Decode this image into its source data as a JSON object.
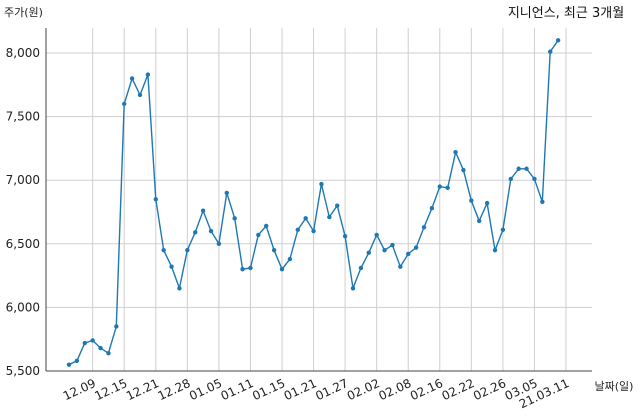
{
  "chart_data": {
    "type": "line",
    "title": "지니언스, 최근 3개월",
    "ylabel": "주가(원)",
    "xlabel": "날짜(일)",
    "ylim": [
      5500,
      8250
    ],
    "yticks": [
      5500,
      6000,
      6500,
      7000,
      7500,
      8000
    ],
    "ytick_labels": [
      "5,500",
      "6,000",
      "6,500",
      "7,000",
      "7,500",
      "8,000"
    ],
    "xtick_labels": [
      "12.09",
      "12.15",
      "12.21",
      "12.28",
      "01.05",
      "01.11",
      "01.15",
      "01.21",
      "01.27",
      "02.02",
      "02.08",
      "02.16",
      "02.22",
      "02.26",
      "03.05",
      "21.03.11"
    ],
    "xtick_positions": [
      3,
      7,
      11,
      15,
      19,
      23,
      27,
      31,
      35,
      39,
      43,
      47,
      51,
      55,
      59,
      63
    ],
    "grid": true,
    "color": "#1f77b4",
    "values": [
      5550,
      5580,
      5720,
      5740,
      5680,
      5640,
      5850,
      7600,
      7800,
      7670,
      7830,
      6850,
      6450,
      6320,
      6150,
      6450,
      6590,
      6760,
      6600,
      6500,
      6900,
      6700,
      6300,
      6310,
      6570,
      6640,
      6450,
      6300,
      6380,
      6610,
      6700,
      6600,
      6970,
      6710,
      6800,
      6560,
      6150,
      6310,
      6430,
      6570,
      6450,
      6490,
      6320,
      6420,
      6470,
      6630,
      6780,
      6950,
      6940,
      7220,
      7080,
      6840,
      6680,
      6820,
      6450,
      6610,
      7010,
      7090,
      7090,
      7010,
      6830,
      8010,
      8100
    ]
  }
}
